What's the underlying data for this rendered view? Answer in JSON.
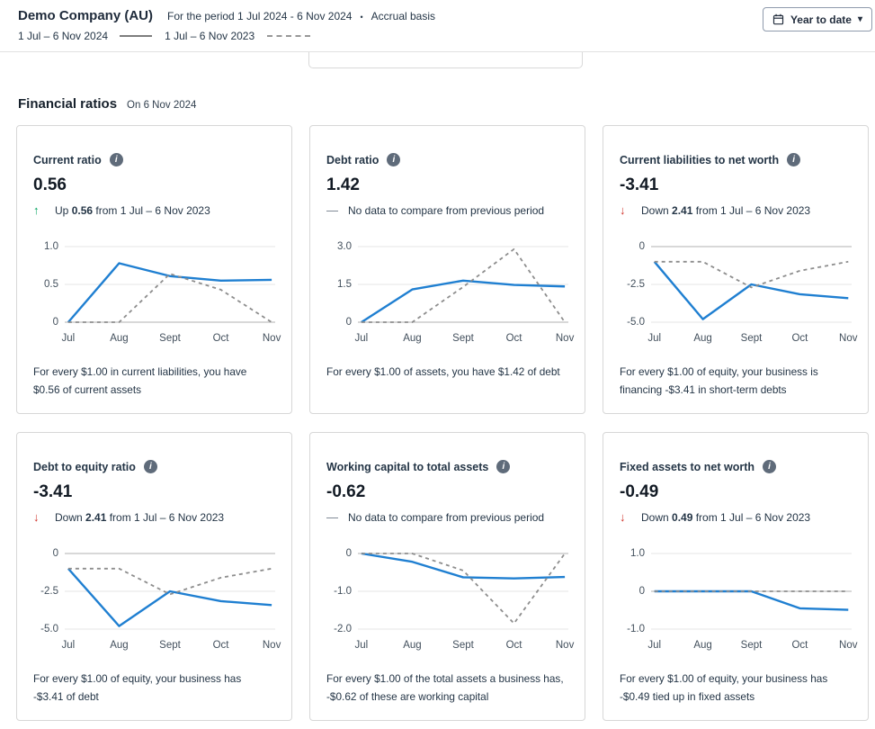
{
  "header": {
    "company_name": "Demo Company (AU)",
    "period_text": "For the period 1 Jul 2024 - 6 Nov 2024",
    "bullet": "•",
    "basis_text": "Accrual basis",
    "legend": [
      {
        "label": "1 Jul – 6 Nov 2024",
        "style": "solid"
      },
      {
        "label": "1 Jul – 6 Nov 2023",
        "style": "dashed"
      }
    ],
    "date_range_button": {
      "label": "Year to date",
      "icon": "calendar-icon",
      "chevron": "▾"
    }
  },
  "section": {
    "title": "Financial ratios",
    "subtitle": "On 6 Nov 2024"
  },
  "colors": {
    "series_current": "#1f7fd1",
    "series_previous": "#8d8d8d",
    "up_green": "#00a35c",
    "down_red": "#d0342c",
    "neutral_gray": "#6f7a87",
    "gridline": "#e4e4e4",
    "zero_gridline": "#b0b0b0"
  },
  "cards": [
    {
      "title": "Current ratio",
      "value": "0.56",
      "change": {
        "type": "up",
        "prefix": "Up",
        "amount": "0.56",
        "suffix": "from 1 Jul – 6 Nov 2023"
      },
      "footer": "For every $1.00 in current liabilities, you have $0.56 of current assets",
      "chart": {
        "type": "line",
        "x_labels": [
          "Jul",
          "Aug",
          "Sept",
          "Oct",
          "Nov"
        ],
        "y_ticks": [
          {
            "label": "1.0",
            "value": 1.0
          },
          {
            "label": "0.5",
            "value": 0.5
          },
          {
            "label": "0",
            "value": 0
          }
        ],
        "series": [
          {
            "name": "1 Jul – 6 Nov 2024",
            "style": "solid",
            "values": [
              0,
              0.78,
              0.61,
              0.55,
              0.56
            ]
          },
          {
            "name": "1 Jul – 6 Nov 2023",
            "style": "dashed",
            "values": [
              0,
              0,
              0.64,
              0.43,
              0
            ]
          }
        ]
      }
    },
    {
      "title": "Debt ratio",
      "value": "1.42",
      "change": {
        "type": "none",
        "text": "No data to compare from previous period"
      },
      "footer": "For every $1.00 of assets, you have $1.42 of debt",
      "chart": {
        "type": "line",
        "x_labels": [
          "Jul",
          "Aug",
          "Sept",
          "Oct",
          "Nov"
        ],
        "y_ticks": [
          {
            "label": "3.0",
            "value": 3.0
          },
          {
            "label": "1.5",
            "value": 1.5
          },
          {
            "label": "0",
            "value": 0
          }
        ],
        "series": [
          {
            "name": "1 Jul – 6 Nov 2024",
            "style": "solid",
            "values": [
              0,
              1.3,
              1.65,
              1.48,
              1.42
            ]
          },
          {
            "name": "1 Jul – 6 Nov 2023",
            "style": "dashed",
            "values": [
              0,
              0,
              1.4,
              2.9,
              0
            ]
          }
        ]
      }
    },
    {
      "title": "Current liabilities to net worth",
      "value": "-3.41",
      "change": {
        "type": "down",
        "prefix": "Down",
        "amount": "2.41",
        "suffix": "from 1 Jul – 6 Nov 2023"
      },
      "footer": "For every $1.00 of equity, your business is financing -$3.41 in short-term debts",
      "chart": {
        "type": "line",
        "x_labels": [
          "Jul",
          "Aug",
          "Sept",
          "Oct",
          "Nov"
        ],
        "y_ticks": [
          {
            "label": "0",
            "value": 0
          },
          {
            "label": "-2.5",
            "value": -2.5
          },
          {
            "label": "-5.0",
            "value": -5.0
          }
        ],
        "series": [
          {
            "name": "1 Jul – 6 Nov 2024",
            "style": "solid",
            "values": [
              -1.0,
              -4.8,
              -2.5,
              -3.15,
              -3.41
            ]
          },
          {
            "name": "1 Jul – 6 Nov 2023",
            "style": "dashed",
            "values": [
              -1.0,
              -1.0,
              -2.7,
              -1.6,
              -1.0
            ]
          }
        ]
      }
    },
    {
      "title": "Debt to equity ratio",
      "value": "-3.41",
      "change": {
        "type": "down",
        "prefix": "Down",
        "amount": "2.41",
        "suffix": "from 1 Jul – 6 Nov 2023"
      },
      "footer": "For every $1.00 of equity, your business has -$3.41 of debt",
      "chart": {
        "type": "line",
        "x_labels": [
          "Jul",
          "Aug",
          "Sept",
          "Oct",
          "Nov"
        ],
        "y_ticks": [
          {
            "label": "0",
            "value": 0
          },
          {
            "label": "-2.5",
            "value": -2.5
          },
          {
            "label": "-5.0",
            "value": -5.0
          }
        ],
        "series": [
          {
            "name": "1 Jul – 6 Nov 2024",
            "style": "solid",
            "values": [
              -1.0,
              -4.8,
              -2.5,
              -3.15,
              -3.41
            ]
          },
          {
            "name": "1 Jul – 6 Nov 2023",
            "style": "dashed",
            "values": [
              -1.0,
              -1.0,
              -2.7,
              -1.6,
              -1.0
            ]
          }
        ]
      }
    },
    {
      "title": "Working capital to total assets",
      "value": "-0.62",
      "change": {
        "type": "none",
        "text": "No data to compare from previous period"
      },
      "footer": "For every $1.00 of the total assets a business has, -$0.62 of these are working capital",
      "chart": {
        "type": "line",
        "x_labels": [
          "Jul",
          "Aug",
          "Sept",
          "Oct",
          "Nov"
        ],
        "y_ticks": [
          {
            "label": "0",
            "value": 0
          },
          {
            "label": "-1.0",
            "value": -1.0
          },
          {
            "label": "-2.0",
            "value": -2.0
          }
        ],
        "series": [
          {
            "name": "1 Jul – 6 Nov 2024",
            "style": "solid",
            "values": [
              0,
              -0.22,
              -0.63,
              -0.66,
              -0.62
            ]
          },
          {
            "name": "1 Jul – 6 Nov 2023",
            "style": "dashed",
            "values": [
              0,
              0,
              -0.45,
              -1.85,
              0
            ]
          }
        ]
      }
    },
    {
      "title": "Fixed assets to net worth",
      "value": "-0.49",
      "change": {
        "type": "down",
        "prefix": "Down",
        "amount": "0.49",
        "suffix": "from 1 Jul – 6 Nov 2023"
      },
      "footer": "For every $1.00 of equity, your business has -$0.49 tied up in fixed assets",
      "chart": {
        "type": "line",
        "x_labels": [
          "Jul",
          "Aug",
          "Sept",
          "Oct",
          "Nov"
        ],
        "y_ticks": [
          {
            "label": "1.0",
            "value": 1.0
          },
          {
            "label": "0",
            "value": 0
          },
          {
            "label": "-1.0",
            "value": -1.0
          }
        ],
        "series": [
          {
            "name": "1 Jul – 6 Nov 2024",
            "style": "solid",
            "values": [
              0,
              0,
              0,
              -0.45,
              -0.49
            ]
          },
          {
            "name": "1 Jul – 6 Nov 2023",
            "style": "dashed",
            "values": [
              0,
              0,
              0,
              0,
              0
            ]
          }
        ]
      }
    }
  ]
}
